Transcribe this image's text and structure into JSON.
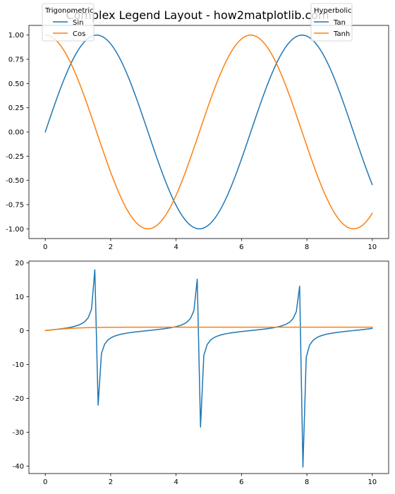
{
  "figure": {
    "title": "Complex Legend Layout - how2matplotlib.com"
  },
  "chart_data": [
    {
      "type": "line",
      "title": "Complex Legend Layout - how2matplotlib.com",
      "xlim": [
        -0.5,
        10.5
      ],
      "ylim": [
        -1.1,
        1.1
      ],
      "x_ticks": [
        0,
        2,
        4,
        6,
        8,
        10
      ],
      "x_tick_labels": [
        "0",
        "2",
        "4",
        "6",
        "8",
        "10"
      ],
      "y_ticks": [
        1.0,
        0.75,
        0.5,
        0.25,
        0.0,
        -0.25,
        -0.5,
        -0.75,
        -1.0
      ],
      "y_tick_labels": [
        "1.00",
        "0.75",
        "0.50",
        "0.25",
        "0.00",
        "-0.25",
        "-0.50",
        "-0.75",
        "-1.00"
      ],
      "grid": false,
      "series": [
        {
          "name": "Sin",
          "color": "#1f77b4",
          "function": "sin",
          "x": [
            0,
            0.5,
            1,
            1.5,
            2,
            2.5,
            3,
            3.5,
            4,
            4.5,
            5,
            5.5,
            6,
            6.5,
            7,
            7.5,
            8,
            8.5,
            9,
            9.5,
            10
          ],
          "y": [
            0,
            0.479,
            0.841,
            0.997,
            0.909,
            0.598,
            0.141,
            -0.351,
            -0.757,
            -0.978,
            -0.959,
            -0.706,
            -0.279,
            0.215,
            0.657,
            0.938,
            0.989,
            0.798,
            0.412,
            -0.075,
            -0.544
          ]
        },
        {
          "name": "Cos",
          "color": "#ff7f0e",
          "function": "cos",
          "x": [
            0,
            0.5,
            1,
            1.5,
            2,
            2.5,
            3,
            3.5,
            4,
            4.5,
            5,
            5.5,
            6,
            6.5,
            7,
            7.5,
            8,
            8.5,
            9,
            9.5,
            10
          ],
          "y": [
            1,
            0.878,
            0.54,
            0.071,
            -0.416,
            -0.801,
            -0.99,
            -0.936,
            -0.654,
            -0.211,
            0.284,
            0.709,
            0.96,
            0.977,
            0.754,
            0.347,
            -0.146,
            -0.602,
            -0.911,
            -0.997,
            -0.839
          ]
        }
      ],
      "legends": [
        {
          "title": "Trigonometric",
          "placement": "upper-left",
          "entries": [
            {
              "label": "Sin",
              "color": "#1f77b4"
            },
            {
              "label": "Cos",
              "color": "#ff7f0e"
            }
          ]
        },
        {
          "title": "Hyperbolic",
          "placement": "upper-right",
          "entries": [
            {
              "label": "Tan",
              "color": "#1f77b4"
            },
            {
              "label": "Tanh",
              "color": "#ff7f0e"
            }
          ]
        }
      ]
    },
    {
      "type": "line",
      "xlim": [
        -0.5,
        10.5
      ],
      "ylim": [
        -42.2,
        20.5
      ],
      "x_ticks": [
        0,
        2,
        4,
        6,
        8,
        10
      ],
      "x_tick_labels": [
        "0",
        "2",
        "4",
        "6",
        "8",
        "10"
      ],
      "y_ticks": [
        20,
        10,
        0,
        -10,
        -20,
        -30,
        -40
      ],
      "y_tick_labels": [
        "20",
        "10",
        "0",
        "-10",
        "-20",
        "-30",
        "-40"
      ],
      "grid": false,
      "series": [
        {
          "name": "Tan",
          "color": "#1f77b4",
          "function": "tan",
          "sample_count": 100,
          "x": [
            0,
            0.5,
            1,
            1.41,
            1.52,
            1.62,
            1.72,
            2,
            3,
            4,
            4.65,
            4.75,
            4.85,
            5,
            6,
            7,
            7.68,
            7.78,
            7.88,
            8,
            9,
            10
          ],
          "y": [
            0,
            0.55,
            1.56,
            6.3,
            18.0,
            -22.0,
            -6.8,
            -2.19,
            -0.14,
            1.16,
            15.2,
            -28.4,
            -7.5,
            -3.38,
            -0.29,
            0.87,
            13.0,
            -40.2,
            -7.7,
            -6.8,
            -0.45,
            0.65
          ]
        },
        {
          "name": "Tanh",
          "color": "#ff7f0e",
          "function": "tanh",
          "x": [
            0,
            0.5,
            1,
            1.5,
            2,
            2.5,
            3,
            4,
            5,
            6,
            7,
            8,
            9,
            10
          ],
          "y": [
            0,
            0.462,
            0.762,
            0.905,
            0.964,
            0.987,
            0.995,
            0.999,
            1.0,
            1.0,
            1.0,
            1.0,
            1.0,
            1.0
          ]
        }
      ]
    }
  ]
}
